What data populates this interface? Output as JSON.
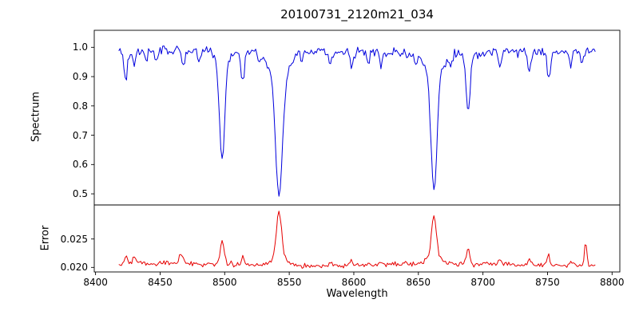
{
  "figure": {
    "title": "20100731_2120m21_034",
    "xlabel": "Wavelength",
    "background": "#ffffff",
    "frame_color": "#000000"
  },
  "chart_data": [
    {
      "type": "line",
      "name": "spectrum",
      "panel": "top",
      "title": "20100731_2120m21_034",
      "ylabel": "Spectrum",
      "color": "#0000dd",
      "grid": false,
      "legend": "none",
      "xlim": [
        8399,
        8806
      ],
      "ylim": [
        0.462,
        1.058
      ],
      "xticks": [
        8400,
        8450,
        8500,
        8550,
        8600,
        8650,
        8700,
        8750,
        8800
      ],
      "xtick_labels": [
        "8400",
        "8450",
        "8500",
        "8550",
        "8600",
        "8650",
        "8700",
        "8750",
        "8800"
      ],
      "yticks": [
        0.5,
        0.6,
        0.7,
        0.8,
        0.9,
        1.0
      ],
      "ytick_labels": [
        "0.5",
        "0.6",
        "0.7",
        "0.8",
        "0.9",
        "1.0"
      ],
      "x_start": 8418,
      "x_end": 8787,
      "x_step": 1,
      "continuum": 0.985,
      "noise_sigma": 0.012,
      "noise_seed": 101,
      "absorption_lines": [
        [
          8423.5,
          0.095,
          1.2
        ],
        [
          8430.0,
          0.05,
          1.0
        ],
        [
          8439.0,
          0.04,
          1.0
        ],
        [
          8447.0,
          0.035,
          1.0
        ],
        [
          8468.0,
          0.055,
          1.2
        ],
        [
          8480.0,
          0.035,
          1.0
        ],
        [
          8498.0,
          0.33,
          2.0
        ],
        [
          8498.0,
          0.04,
          5.0
        ],
        [
          8514.0,
          0.1,
          1.4
        ],
        [
          8527.0,
          0.035,
          1.0
        ],
        [
          8542.1,
          0.4,
          2.6
        ],
        [
          8542.1,
          0.095,
          7.0
        ],
        [
          8560.0,
          0.03,
          1.0
        ],
        [
          8582.0,
          0.045,
          1.2
        ],
        [
          8598.5,
          0.05,
          1.2
        ],
        [
          8611.0,
          0.035,
          1.0
        ],
        [
          8621.0,
          0.045,
          1.0
        ],
        [
          8648.0,
          0.035,
          1.0
        ],
        [
          8662.1,
          0.395,
          2.3
        ],
        [
          8662.1,
          0.075,
          6.5
        ],
        [
          8675.0,
          0.035,
          1.0
        ],
        [
          8688.5,
          0.2,
          1.6
        ],
        [
          8713.0,
          0.05,
          1.2
        ],
        [
          8736.0,
          0.06,
          1.2
        ],
        [
          8751.0,
          0.09,
          1.3
        ],
        [
          8768.0,
          0.05,
          1.0
        ],
        [
          8776.5,
          0.04,
          1.0
        ]
      ]
    },
    {
      "type": "line",
      "name": "error",
      "panel": "bottom",
      "ylabel": "Error",
      "color": "#e60000",
      "grid": false,
      "legend": "none",
      "xlim": [
        8399,
        8806
      ],
      "ylim": [
        0.0192,
        0.031
      ],
      "yticks": [
        0.02,
        0.025
      ],
      "ytick_labels": [
        "0.020",
        "0.025"
      ],
      "x_start": 8418,
      "x_end": 8787,
      "x_step": 1,
      "baseline": 0.0205,
      "noise_sigma": 0.00032,
      "noise_seed": 202,
      "peaks": [
        [
          8423.5,
          0.0013,
          1.2
        ],
        [
          8430.0,
          0.0012,
          1.0
        ],
        [
          8466.0,
          0.0018,
          1.2
        ],
        [
          8498.0,
          0.004,
          1.6
        ],
        [
          8514.0,
          0.0012,
          1.2
        ],
        [
          8542.1,
          0.008,
          2.0
        ],
        [
          8542.1,
          0.0015,
          5.0
        ],
        [
          8582.0,
          0.0007,
          1.0
        ],
        [
          8598.0,
          0.0007,
          1.0
        ],
        [
          8621.0,
          0.0006,
          1.0
        ],
        [
          8662.1,
          0.0072,
          1.8
        ],
        [
          8662.1,
          0.0013,
          5.0
        ],
        [
          8688.5,
          0.0022,
          1.4
        ],
        [
          8713.0,
          0.0007,
          1.0
        ],
        [
          8736.0,
          0.0009,
          1.0
        ],
        [
          8751.0,
          0.0018,
          1.2
        ],
        [
          8768.0,
          0.001,
          1.0
        ],
        [
          8779.5,
          0.0042,
          0.9
        ]
      ]
    }
  ]
}
